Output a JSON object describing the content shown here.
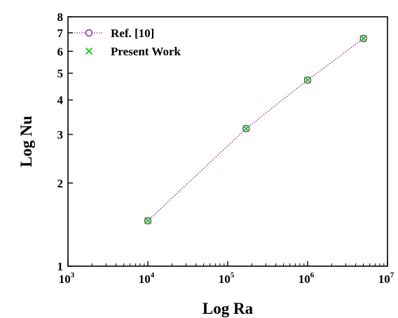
{
  "chart_data": {
    "type": "line",
    "xlabel": "Log Ra",
    "ylabel": "Log Nu",
    "x_scale": "log",
    "y_scale": "log",
    "xlim": [
      1000,
      10000000
    ],
    "ylim": [
      1,
      8
    ],
    "x_ticks": [
      {
        "value": 1000,
        "base": "10",
        "exp": "3"
      },
      {
        "value": 10000,
        "base": "10",
        "exp": "4"
      },
      {
        "value": 100000,
        "base": "10",
        "exp": "5"
      },
      {
        "value": 1000000,
        "base": "10",
        "exp": "6"
      },
      {
        "value": 10000000,
        "base": "10",
        "exp": "7"
      }
    ],
    "y_ticks": [
      1,
      2,
      3,
      4,
      5,
      6,
      7,
      8
    ],
    "legend_position": "top-left",
    "series": [
      {
        "name": "Ref. [10]",
        "marker": "circle",
        "line": "dotted",
        "color": "#8a2b9c",
        "x": [
          10000,
          170000,
          1000000,
          5000000
        ],
        "y": [
          1.46,
          3.15,
          4.72,
          6.68
        ]
      },
      {
        "name": "Present Work",
        "marker": "x",
        "line": "none",
        "color": "#22cc22",
        "x": [
          10000,
          170000,
          1000000,
          5000000
        ],
        "y": [
          1.46,
          3.15,
          4.72,
          6.68
        ]
      }
    ]
  }
}
